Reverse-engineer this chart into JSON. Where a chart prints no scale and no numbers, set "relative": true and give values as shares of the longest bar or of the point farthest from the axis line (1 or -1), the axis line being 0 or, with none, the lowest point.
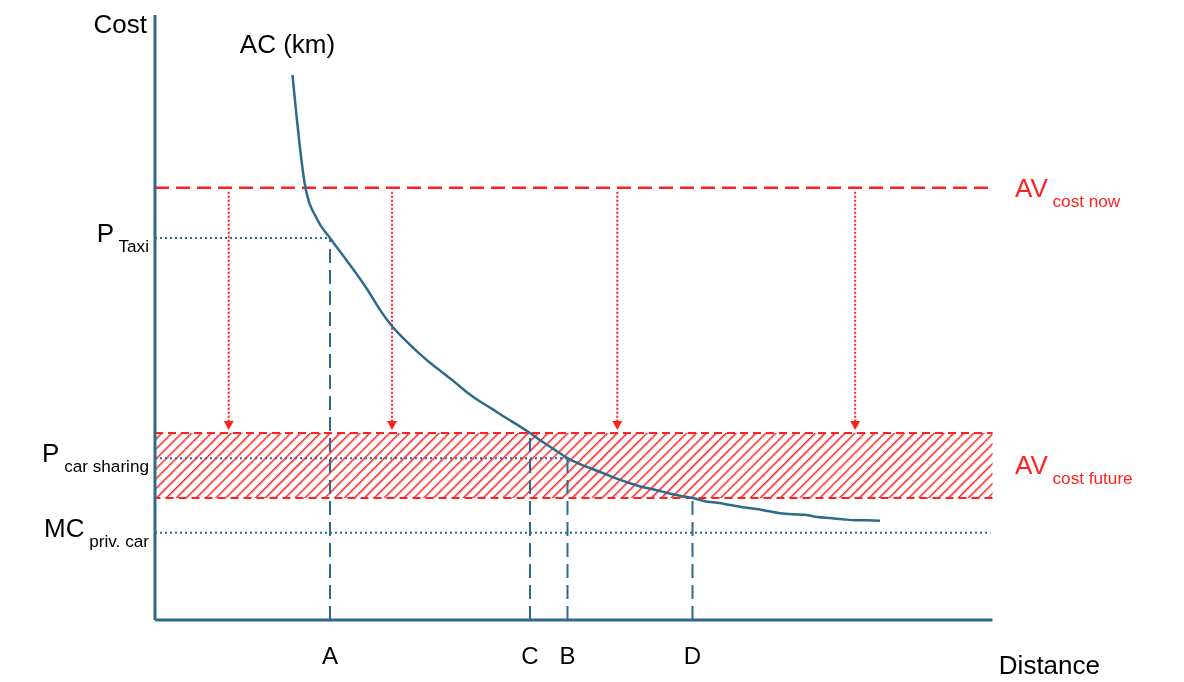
{
  "chart_data": {
    "type": "line",
    "relative": true,
    "xlabel": "Distance",
    "ylabel": "Cost",
    "tick_labels": "x",
    "categories": [
      null,
      null,
      null,
      null,
      null,
      null,
      null,
      null,
      null,
      null,
      null,
      null,
      null,
      null,
      "A",
      null,
      null,
      null,
      null,
      null,
      null,
      null,
      null,
      null,
      null,
      null,
      null,
      null,
      null,
      null,
      "C",
      null,
      null,
      "B",
      null,
      null,
      null,
      null,
      null,
      null,
      null,
      null,
      null,
      "D",
      null,
      null,
      null,
      null,
      null,
      null,
      null,
      null,
      null,
      null,
      null,
      null,
      null,
      null,
      null,
      null,
      null,
      null,
      null,
      null,
      null,
      null,
      null,
      null
    ],
    "series": [
      {
        "name": "AC (km)",
        "color": "#2e6a8a",
        "line_style": "solid",
        "values": [
          null,
          null,
          null,
          null,
          null,
          null,
          null,
          null,
          null,
          null,
          null,
          1,
          0.798,
          0.734,
          0.701,
          0.67,
          0.639,
          0.606,
          0.569,
          0.538,
          0.514,
          0.492,
          0.472,
          0.454,
          0.436,
          0.417,
          0.401,
          0.387,
          0.372,
          0.358,
          0.343,
          0.327,
          0.312,
          0.297,
          0.286,
          0.277,
          0.268,
          0.259,
          0.251,
          0.244,
          0.239,
          0.233,
          0.228,
          0.224,
          0.218,
          0.215,
          0.211,
          0.207,
          0.204,
          0.2,
          0.196,
          0.194,
          0.193,
          0.189,
          0.187,
          0.185,
          0.183,
          0.183,
          0.182,
          null,
          null,
          null,
          null,
          null,
          null,
          null,
          null,
          null
        ]
      }
    ],
    "ref_lines": [
      {
        "axis": "y",
        "value": 0.793,
        "label": "AV$_{cost now}$",
        "color": "#ff2020",
        "line_style": "dashed"
      },
      {
        "axis": "y",
        "value": 0.701,
        "label": "P$_{Taxi}$",
        "color": "#2e6a8a",
        "line_style": "dotted"
      },
      {
        "axis": "y",
        "value": 0.297,
        "label": "P$_{car sharing}$",
        "color": "#2e6a8a",
        "line_style": "dotted"
      },
      {
        "axis": "y",
        "value": 0.16,
        "label": "MC$_{priv. car}$",
        "color": "#2e6a8a",
        "line_style": "dotted"
      },
      {
        "axis": "x",
        "value": "A",
        "color": "#2e6a8a",
        "line_style": "dashed"
      },
      {
        "axis": "x",
        "value": "C",
        "color": "#2e6a8a",
        "line_style": "dashed"
      },
      {
        "axis": "x",
        "value": "B",
        "color": "#2e6a8a",
        "line_style": "dashed"
      },
      {
        "axis": "x",
        "value": "D",
        "color": "#2e6a8a",
        "line_style": "dashed"
      }
    ],
    "bands": [
      {
        "axis": "y",
        "from": 0.224,
        "to": 0.343,
        "label": "AV$_{cost future}$",
        "color": "#ff2020"
      }
    ]
  }
}
